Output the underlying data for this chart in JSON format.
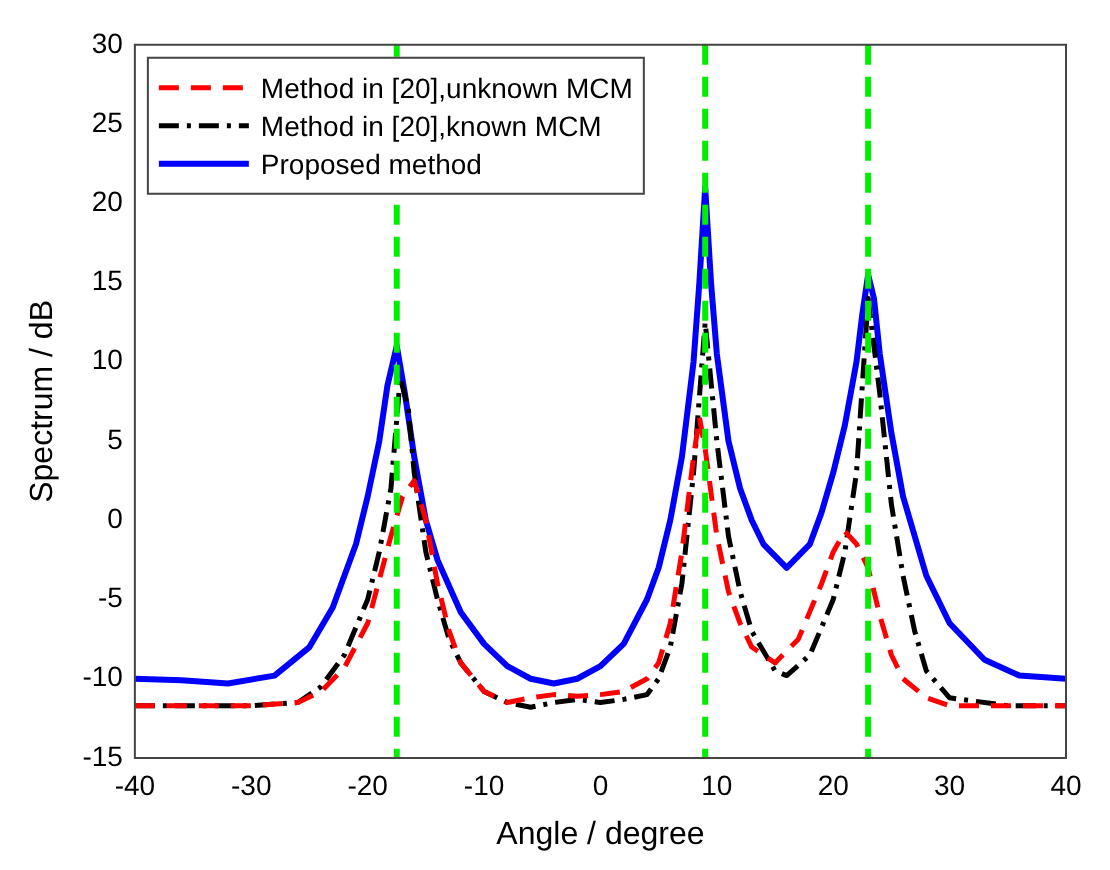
{
  "chart_data": {
    "type": "line",
    "xlabel": "Angle / degree",
    "ylabel": "Spectrum / dB",
    "xlim": [
      -40,
      40
    ],
    "ylim": [
      -15,
      30
    ],
    "xticks": [
      -40,
      -30,
      -20,
      -10,
      0,
      10,
      20,
      30,
      40
    ],
    "yticks": [
      -15,
      -10,
      -5,
      0,
      5,
      10,
      15,
      20,
      25,
      30
    ],
    "grid": false,
    "legend": "top left",
    "series": [
      {
        "name": "Method in [20],unknown MCM",
        "color": "#ff0000",
        "line_style": "dashed",
        "x": [
          -40,
          -30,
          -26,
          -24,
          -22,
          -20,
          -18,
          -17,
          -16,
          -15,
          -14,
          -13,
          -12,
          -10,
          -8,
          -6,
          -4,
          -2,
          0,
          2,
          4,
          5,
          6,
          7,
          8,
          8.5,
          9,
          10,
          11,
          12,
          13,
          15,
          17,
          19,
          20,
          21,
          22,
          23,
          24,
          25,
          26,
          28,
          30,
          35,
          40
        ],
        "values": [
          -11.7,
          -11.7,
          -11.5,
          -10.8,
          -9.3,
          -6.5,
          -1,
          1.5,
          2.5,
          0,
          -4,
          -7,
          -9,
          -10.8,
          -11.5,
          -11.2,
          -11,
          -11.1,
          -11,
          -10.8,
          -10,
          -9,
          -6.5,
          -2,
          4,
          6.5,
          4.5,
          -1,
          -4.5,
          -6.5,
          -8,
          -9,
          -7.5,
          -4,
          -2,
          -0.7,
          -1.5,
          -3,
          -6,
          -8.5,
          -10,
          -11.2,
          -11.7,
          -11.7,
          -11.7
        ]
      },
      {
        "name": "Method in [20],known MCM",
        "color": "#000000",
        "line_style": "dashdot",
        "x": [
          -40,
          -30,
          -26,
          -24,
          -22,
          -20,
          -19,
          -18,
          -17.2,
          -16.5,
          -16,
          -15,
          -14,
          -13,
          -12,
          -10,
          -8,
          -6,
          -4,
          -2,
          0,
          2,
          4,
          5,
          6,
          7,
          8,
          9,
          10,
          11,
          12,
          13,
          15,
          16,
          18,
          20,
          21,
          22,
          23,
          24,
          25,
          26,
          27,
          28,
          30,
          35,
          40
        ],
        "values": [
          -11.7,
          -11.7,
          -11.5,
          -10.5,
          -8.5,
          -5,
          -2,
          2,
          9,
          7,
          3,
          -2,
          -5,
          -7.5,
          -9,
          -10.8,
          -11.5,
          -11.8,
          -11.5,
          -11.3,
          -11.5,
          -11.3,
          -11,
          -10,
          -8,
          -4,
          3,
          12.5,
          5,
          -1,
          -4.5,
          -7,
          -9.5,
          -9.8,
          -8.5,
          -5,
          -2,
          3,
          14,
          8,
          1,
          -3.5,
          -7,
          -9.5,
          -11.2,
          -11.7,
          -11.7
        ]
      },
      {
        "name": "Proposed method",
        "color": "#0000ff",
        "line_style": "solid",
        "x": [
          -40,
          -36,
          -32,
          -28,
          -25,
          -23,
          -21,
          -20,
          -19,
          -18.3,
          -17.5,
          -16.8,
          -16,
          -15,
          -14,
          -12,
          -10,
          -8,
          -6,
          -4,
          -2,
          0,
          2,
          4,
          5,
          6,
          7,
          8,
          8.5,
          9,
          9.5,
          10,
          11,
          12,
          13,
          14,
          16,
          18,
          19,
          20,
          21,
          22,
          22.5,
          23,
          23.5,
          24,
          25,
          26,
          28,
          30,
          33,
          36,
          40
        ],
        "values": [
          -10,
          -10.1,
          -10.3,
          -9.8,
          -8,
          -5.5,
          -1.5,
          1.5,
          5,
          8.5,
          11,
          8,
          4,
          0,
          -2.5,
          -5.8,
          -7.8,
          -9.2,
          -10,
          -10.3,
          -10,
          -9.2,
          -7.8,
          -5,
          -3,
          0,
          4,
          10,
          15,
          21,
          15,
          10.5,
          5,
          2,
          0,
          -1.5,
          -3,
          -1.5,
          0.5,
          3,
          6,
          10,
          13,
          15.5,
          14,
          10.5,
          5.5,
          1.5,
          -3.5,
          -6.5,
          -8.8,
          -9.8,
          -10
        ]
      }
    ],
    "ref_lines": [
      {
        "axis": "x",
        "value": -17.5,
        "color": "#00ee00",
        "line_style": "dashed"
      },
      {
        "axis": "x",
        "value": 9,
        "color": "#00ee00",
        "line_style": "dashed"
      },
      {
        "axis": "x",
        "value": 23,
        "color": "#00ee00",
        "line_style": "dashed"
      }
    ]
  }
}
